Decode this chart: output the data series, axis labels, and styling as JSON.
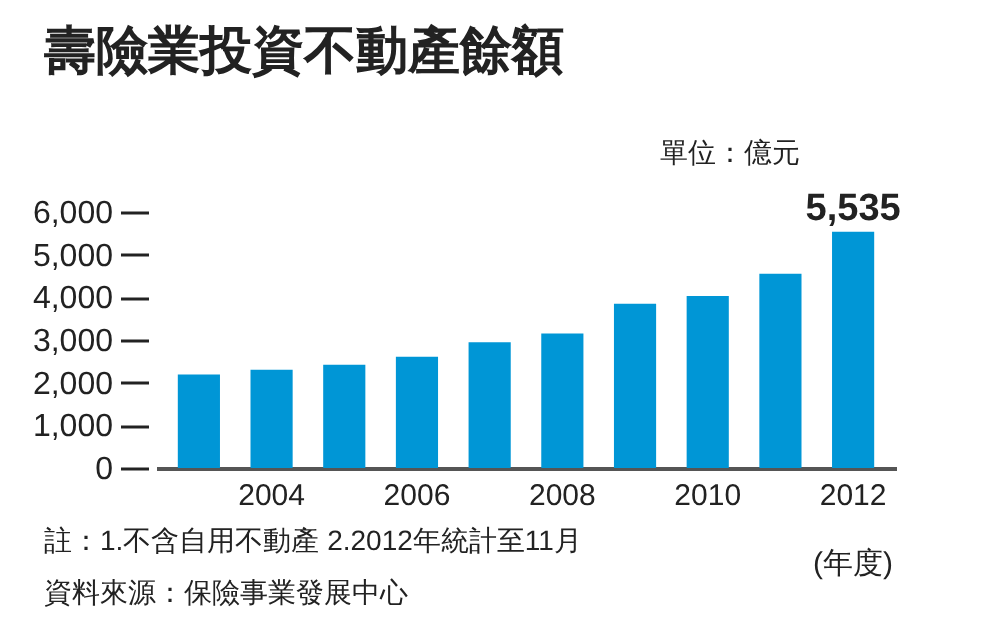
{
  "chart_data": {
    "type": "bar",
    "title": "壽險業投資不動產餘額",
    "subtitle": "單位：億元",
    "xlabel": "(年度)",
    "categories": [
      null,
      "2004",
      null,
      "2006",
      null,
      "2008",
      null,
      "2010",
      null,
      "2012"
    ],
    "values": [
      2190,
      2300,
      2420,
      2610,
      2950,
      3150,
      3850,
      4030,
      4550,
      5535
    ],
    "value_labels": [
      null,
      null,
      null,
      null,
      null,
      null,
      null,
      null,
      null,
      "5,535"
    ],
    "color": "#0096d6",
    "ylim": [
      0,
      6000
    ],
    "yticks": [
      0,
      {
        "value": 1000,
        "label": "1,000"
      },
      {
        "value": 2000,
        "label": "2,000"
      },
      {
        "value": 3000,
        "label": "3,000"
      },
      {
        "value": 4000,
        "label": "4,000"
      },
      {
        "value": 5000,
        "label": "5,000"
      },
      {
        "value": 6000,
        "label": "6,000"
      }
    ],
    "annotations": [
      "註：1.不含自用不動產 2.2012年統計至11月",
      "資料來源：保險事業發展中心"
    ]
  }
}
